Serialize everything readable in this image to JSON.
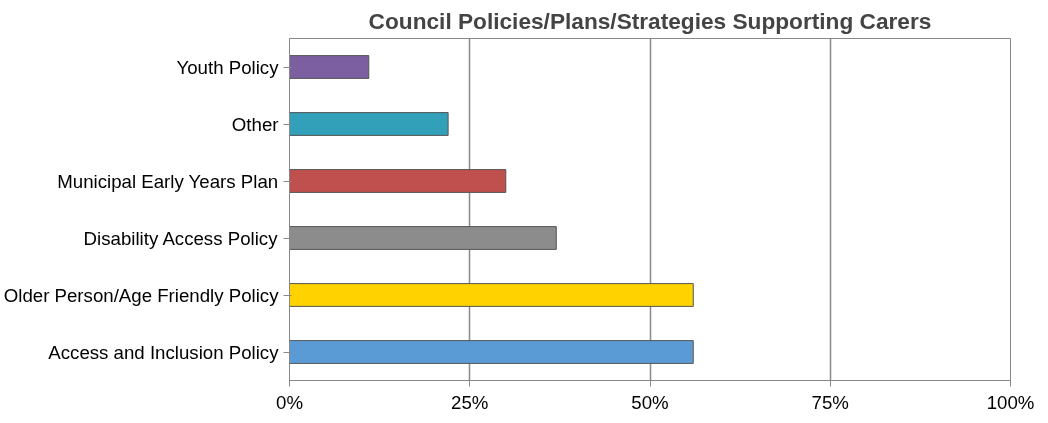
{
  "chart_data": {
    "type": "bar",
    "orientation": "horizontal",
    "title": "Council Policies/Plans/Strategies Supporting Carers",
    "categories": [
      "Youth Policy",
      "Other",
      "Municipal Early Years Plan",
      "Disability Access Policy",
      "Older Person/Age Friendly Policy",
      "Access and Inclusion Policy"
    ],
    "values": [
      11,
      22,
      30,
      37,
      56,
      56
    ],
    "colors": [
      "#7b5fa0",
      "#31a0b8",
      "#c0504d",
      "#8c8c8c",
      "#ffd200",
      "#5b9bd5"
    ],
    "xlim": [
      0,
      100
    ],
    "xticks": [
      {
        "value": 0,
        "label": "0%"
      },
      {
        "value": 25,
        "label": "25%"
      },
      {
        "value": 50,
        "label": "50%"
      },
      {
        "value": 75,
        "label": "75%"
      },
      {
        "value": 100,
        "label": "100%"
      }
    ],
    "grid": "x"
  }
}
